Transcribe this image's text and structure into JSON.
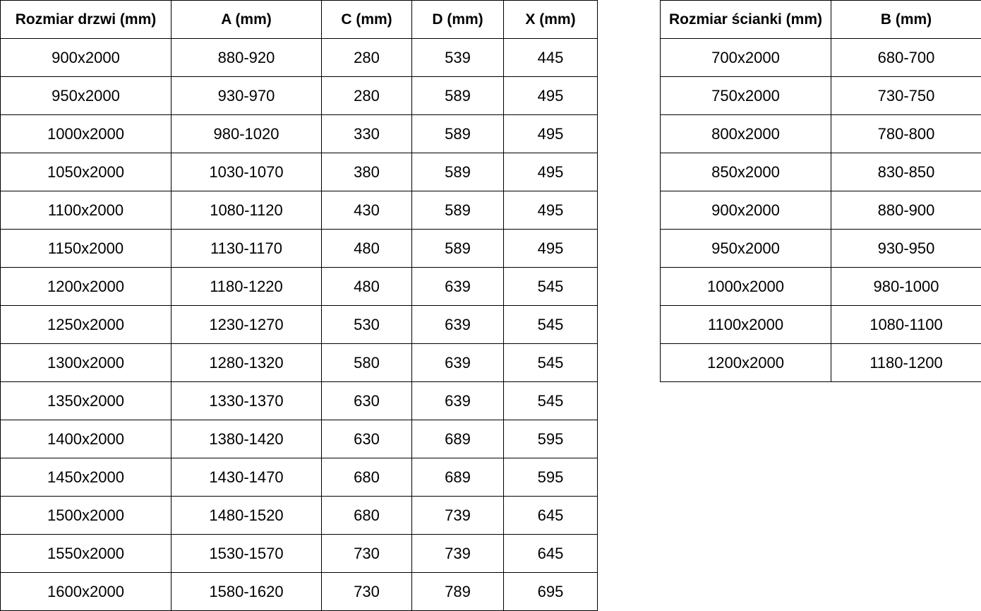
{
  "doors_table": {
    "name": "Rozmiar drzwi",
    "headers": [
      "Rozmiar drzwi (mm)",
      "A (mm)",
      "C (mm)",
      "D (mm)",
      "X (mm)"
    ],
    "rows": [
      [
        "900x2000",
        "880-920",
        "280",
        "539",
        "445"
      ],
      [
        "950x2000",
        "930-970",
        "280",
        "589",
        "495"
      ],
      [
        "1000x2000",
        "980-1020",
        "330",
        "589",
        "495"
      ],
      [
        "1050x2000",
        "1030-1070",
        "380",
        "589",
        "495"
      ],
      [
        "1100x2000",
        "1080-1120",
        "430",
        "589",
        "495"
      ],
      [
        "1150x2000",
        "1130-1170",
        "480",
        "589",
        "495"
      ],
      [
        "1200x2000",
        "1180-1220",
        "480",
        "639",
        "545"
      ],
      [
        "1250x2000",
        "1230-1270",
        "530",
        "639",
        "545"
      ],
      [
        "1300x2000",
        "1280-1320",
        "580",
        "639",
        "545"
      ],
      [
        "1350x2000",
        "1330-1370",
        "630",
        "639",
        "545"
      ],
      [
        "1400x2000",
        "1380-1420",
        "630",
        "689",
        "595"
      ],
      [
        "1450x2000",
        "1430-1470",
        "680",
        "689",
        "595"
      ],
      [
        "1500x2000",
        "1480-1520",
        "680",
        "739",
        "645"
      ],
      [
        "1550x2000",
        "1530-1570",
        "730",
        "739",
        "645"
      ],
      [
        "1600x2000",
        "1580-1620",
        "730",
        "789",
        "695"
      ]
    ]
  },
  "walls_table": {
    "name": "Rozmiar ścianki",
    "headers": [
      "Rozmiar ścianki (mm)",
      "B (mm)"
    ],
    "rows": [
      [
        "700x2000",
        "680-700"
      ],
      [
        "750x2000",
        "730-750"
      ],
      [
        "800x2000",
        "780-800"
      ],
      [
        "850x2000",
        "830-850"
      ],
      [
        "900x2000",
        "880-900"
      ],
      [
        "950x2000",
        "930-950"
      ],
      [
        "1000x2000",
        "980-1000"
      ],
      [
        "1100x2000",
        "1080-1100"
      ],
      [
        "1200x2000",
        "1180-1200"
      ]
    ]
  },
  "colors": {
    "border": "#000000",
    "text": "#000000",
    "background": "#ffffff"
  }
}
